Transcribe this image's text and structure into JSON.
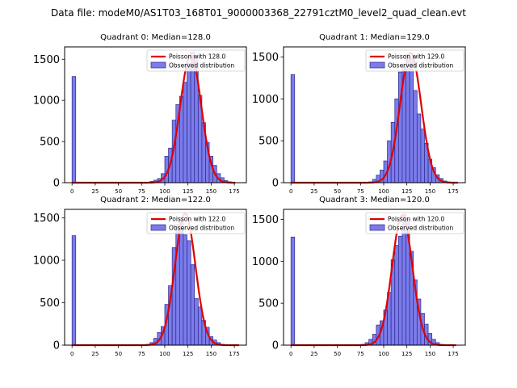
{
  "figure": {
    "suptitle": "Data file: modeM0/AS1T03_168T01_9000003368_22791cztM0_level2_quad_clean.evt"
  },
  "colors": {
    "bar_fill": "#7b7bea",
    "bar_edge": "#2b2b8f",
    "poisson_line": "#e00000"
  },
  "chart_data": [
    {
      "type": "bar",
      "title": "Quadrant 0: Median=128.0",
      "median": 128.0,
      "bin_width": 4,
      "xlim": [
        -8,
        188
      ],
      "ylim": [
        0,
        1650
      ],
      "x_ticks": [
        "0",
        "25",
        "50",
        "75",
        "100",
        "125",
        "150",
        "175"
      ],
      "y_ticks": [
        "0",
        "500",
        "1000",
        "1500"
      ],
      "legend": {
        "placement": "top-right",
        "entries": [
          "Poisson with 128.0",
          "Observed distribution"
        ]
      },
      "histogram": {
        "bin_starts": [
          0,
          80,
          84,
          88,
          92,
          96,
          100,
          104,
          108,
          112,
          116,
          120,
          124,
          128,
          132,
          136,
          140,
          144,
          148,
          152,
          156,
          160,
          164,
          168
        ],
        "counts": [
          1290,
          5,
          15,
          30,
          50,
          110,
          320,
          420,
          760,
          950,
          1050,
          1220,
          1450,
          1590,
          1490,
          1060,
          730,
          490,
          320,
          210,
          110,
          60,
          25,
          10
        ]
      },
      "poisson": {
        "mean": 128.0,
        "peak": 1550,
        "x_range": [
          0,
          176
        ]
      }
    },
    {
      "type": "bar",
      "title": "Quadrant 1: Median=129.0",
      "median": 129.0,
      "bin_width": 4,
      "xlim": [
        -8,
        188
      ],
      "ylim": [
        0,
        1620
      ],
      "x_ticks": [
        "0",
        "25",
        "50",
        "75",
        "100",
        "125",
        "150",
        "175"
      ],
      "y_ticks": [
        "0",
        "500",
        "1000",
        "1500"
      ],
      "legend": {
        "placement": "top-right",
        "entries": [
          "Poisson with 129.0",
          "Observed distribution"
        ]
      },
      "histogram": {
        "bin_starts": [
          0,
          84,
          88,
          92,
          96,
          100,
          104,
          108,
          112,
          116,
          120,
          124,
          128,
          132,
          136,
          140,
          144,
          148,
          152,
          156,
          160,
          164,
          168
        ],
        "counts": [
          1290,
          10,
          40,
          90,
          150,
          260,
          500,
          720,
          1000,
          1320,
          1390,
          1530,
          1480,
          1100,
          820,
          640,
          470,
          280,
          180,
          95,
          50,
          20,
          8
        ]
      },
      "poisson": {
        "mean": 129.0,
        "peak": 1550,
        "x_range": [
          0,
          180
        ]
      }
    },
    {
      "type": "bar",
      "title": "Quadrant 2: Median=122.0",
      "median": 122.0,
      "bin_width": 4,
      "xlim": [
        -8,
        188
      ],
      "ylim": [
        0,
        1600
      ],
      "x_ticks": [
        "0",
        "25",
        "50",
        "75",
        "100",
        "125",
        "150",
        "175"
      ],
      "y_ticks": [
        "0",
        "500",
        "1000",
        "1500"
      ],
      "legend": {
        "placement": "top-right",
        "entries": [
          "Poisson with 122.0",
          "Observed distribution"
        ]
      },
      "histogram": {
        "bin_starts": [
          0,
          80,
          84,
          88,
          92,
          96,
          100,
          104,
          108,
          112,
          116,
          120,
          124,
          128,
          132,
          136,
          140,
          144,
          148,
          152,
          156,
          160
        ],
        "counts": [
          1290,
          10,
          30,
          80,
          150,
          220,
          480,
          700,
          1150,
          1420,
          1500,
          1300,
          1230,
          950,
          550,
          450,
          290,
          210,
          100,
          60,
          30,
          10
        ]
      },
      "poisson": {
        "mean": 122.0,
        "peak": 1550,
        "x_range": [
          0,
          180
        ]
      }
    },
    {
      "type": "bar",
      "title": "Quadrant 3: Median=120.0",
      "median": 120.0,
      "bin_width": 4,
      "xlim": [
        -8,
        188
      ],
      "ylim": [
        0,
        1620
      ],
      "x_ticks": [
        "0",
        "25",
        "50",
        "75",
        "100",
        "125",
        "150",
        "175"
      ],
      "y_ticks": [
        "0",
        "500",
        "1000",
        "1500"
      ],
      "legend": {
        "placement": "top-right",
        "entries": [
          "Poisson with 120.0",
          "Observed distribution"
        ]
      },
      "histogram": {
        "bin_starts": [
          0,
          76,
          80,
          84,
          88,
          92,
          96,
          100,
          104,
          108,
          112,
          116,
          120,
          124,
          128,
          132,
          136,
          140,
          144,
          148,
          152,
          156,
          160
        ],
        "counts": [
          1290,
          10,
          30,
          70,
          130,
          240,
          290,
          420,
          630,
          1020,
          1190,
          1300,
          1560,
          1500,
          1120,
          780,
          550,
          380,
          250,
          140,
          70,
          30,
          10
        ]
      },
      "poisson": {
        "mean": 120.0,
        "peak": 1550,
        "x_range": [
          0,
          178
        ]
      }
    }
  ]
}
